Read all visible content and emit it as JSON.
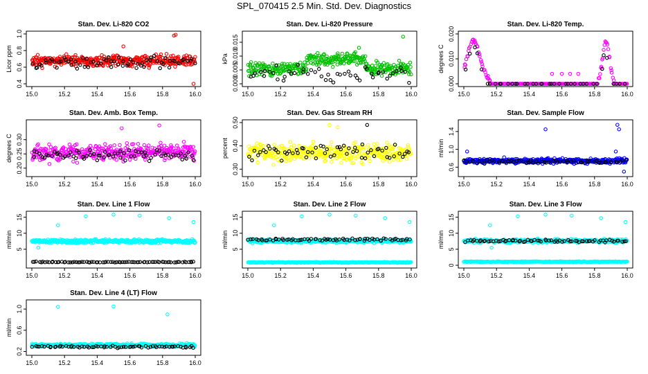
{
  "title": "SPL_070415  2.5 Min. Std. Dev. Diagnostics",
  "chart_data": [
    {
      "type": "scatter",
      "title": "Stan. Dev. Li-820 CO2",
      "ylabel": "Licor ppm",
      "xlim": [
        15.0,
        16.0
      ],
      "ylim": [
        0.4,
        1.0
      ],
      "xticks": [
        "15.0",
        "15.2",
        "15.4",
        "15.6",
        "15.8",
        "16.0"
      ],
      "yticks": [
        "0.4",
        "0.6",
        "0.8",
        "1.0"
      ],
      "series": [
        {
          "color": "#ff0000",
          "seed": 11,
          "base": 0.68,
          "spread": 0.07,
          "n": 380,
          "outliers": [
            [
              15.87,
              0.98
            ],
            [
              15.88,
              0.99
            ],
            [
              15.99,
              0.4
            ],
            [
              15.56,
              0.85
            ]
          ]
        },
        {
          "color": "#000000",
          "seed": 12,
          "base": 0.66,
          "spread": 0.08,
          "n": 70,
          "outliers": []
        }
      ]
    },
    {
      "type": "scatter",
      "title": "Stan. Dev. Li-820 Pressure",
      "ylabel": "kPa",
      "xlim": [
        15.0,
        16.0
      ],
      "ylim": [
        0.0,
        0.018
      ],
      "xticks": [
        "15.0",
        "15.2",
        "15.4",
        "15.6",
        "15.8",
        "16.0"
      ],
      "yticks": [
        "0.000",
        "0.005",
        "0.010",
        "0.015"
      ],
      "series": [
        {
          "color": "#00c000",
          "seed": 21,
          "base": 0.0055,
          "spread": 0.0025,
          "n": 360,
          "hump": [
            15.36,
            15.72,
            0.0035
          ],
          "outliers": [
            [
              15.95,
              0.017
            ],
            [
              15.68,
              0.013
            ],
            [
              15.55,
              0.011
            ]
          ]
        },
        {
          "color": "#000000",
          "seed": 22,
          "base": 0.004,
          "spread": 0.003,
          "n": 50,
          "outliers": []
        }
      ]
    },
    {
      "type": "scatter",
      "title": "Stan. Dev. Li-820 Temp.",
      "ylabel": "degrees C",
      "xlim": [
        15.0,
        16.0
      ],
      "ylim": [
        0.0,
        0.02
      ],
      "xticks": [
        "15.0",
        "15.2",
        "15.4",
        "15.6",
        "15.8",
        "16.0"
      ],
      "yticks": [
        "0.000",
        "0.010",
        "0.020"
      ],
      "series": [
        {
          "color": "#ff00ff",
          "seed": 31,
          "mode": "temp",
          "n": 220,
          "outliers": [
            [
              15.6,
              0.004
            ],
            [
              15.65,
              0.004
            ],
            [
              15.7,
              0.004
            ],
            [
              15.54,
              0.004
            ]
          ]
        },
        {
          "color": "#000000",
          "seed": 32,
          "mode": "tempblack",
          "n": 40,
          "outliers": []
        }
      ]
    },
    {
      "type": "scatter",
      "title": "Stan. Dev. Amb. Box Temp.",
      "ylabel": "degrees C",
      "xlim": [
        15.0,
        16.0
      ],
      "ylim": [
        0.18,
        0.36
      ],
      "xticks": [
        "15.0",
        "15.2",
        "15.4",
        "15.6",
        "15.8",
        "16.0"
      ],
      "yticks": [
        "0.20",
        "0.25",
        "0.30"
      ],
      "series": [
        {
          "color": "#ff00ff",
          "seed": 41,
          "base": 0.255,
          "spread": 0.03,
          "n": 380,
          "outliers": [
            [
              15.78,
              0.35
            ],
            [
              15.55,
              0.34
            ]
          ]
        },
        {
          "color": "#000000",
          "seed": 42,
          "base": 0.245,
          "spread": 0.02,
          "n": 70,
          "outliers": []
        }
      ]
    },
    {
      "type": "scatter",
      "title": "Stan. Dev. Gas Stream RH",
      "ylabel": "percent",
      "xlim": [
        15.0,
        16.0
      ],
      "ylim": [
        0.28,
        0.5
      ],
      "xticks": [
        "15.0",
        "15.2",
        "15.4",
        "15.6",
        "15.8",
        "16.0"
      ],
      "yticks": [
        "0.30",
        "0.40",
        "0.50"
      ],
      "series": [
        {
          "color": "#ffff00",
          "seed": 51,
          "base": 0.37,
          "spread": 0.04,
          "n": 380,
          "outliers": [
            [
              15.5,
              0.49
            ],
            [
              15.55,
              0.48
            ]
          ]
        },
        {
          "color": "#000000",
          "seed": 52,
          "base": 0.37,
          "spread": 0.04,
          "n": 60,
          "outliers": [
            [
              15.73,
              0.49
            ]
          ]
        }
      ]
    },
    {
      "type": "scatter",
      "title": "Stan. Dev. Sample Flow",
      "ylabel": "ml/min",
      "xlim": [
        15.0,
        16.0
      ],
      "ylim": [
        0.45,
        1.6
      ],
      "xticks": [
        "15.0",
        "15.2",
        "15.4",
        "15.6",
        "15.8",
        "16.0"
      ],
      "yticks": [
        "0.6",
        "1.0",
        "1.4"
      ],
      "series": [
        {
          "color": "#0000ff",
          "seed": 61,
          "base": 0.74,
          "spread": 0.06,
          "n": 380,
          "outliers": [
            [
              15.5,
              1.45
            ],
            [
              15.94,
              1.55
            ],
            [
              15.95,
              1.45
            ],
            [
              15.93,
              0.95
            ],
            [
              15.02,
              0.95
            ],
            [
              15.98,
              0.5
            ]
          ]
        },
        {
          "color": "#000000",
          "seed": 62,
          "base": 0.72,
          "spread": 0.04,
          "n": 60,
          "outliers": []
        }
      ]
    },
    {
      "type": "scatter",
      "title": "Stan. Dev. Line 1 Flow",
      "ylabel": "ml/min",
      "xlim": [
        15.0,
        16.0
      ],
      "ylim": [
        0.0,
        16.0
      ],
      "xticks": [
        "15.0",
        "15.2",
        "15.4",
        "15.6",
        "15.8",
        "16.0"
      ],
      "yticks": [
        "5",
        "10",
        "15"
      ],
      "series": [
        {
          "color": "#00ffff",
          "seed": 71,
          "base": 7.5,
          "spread": 0.6,
          "n": 420,
          "outliers": [
            [
              15.16,
              12.5
            ],
            [
              15.33,
              15.3
            ],
            [
              15.5,
              15.8
            ],
            [
              15.66,
              15.5
            ],
            [
              15.84,
              14.7
            ],
            [
              15.99,
              13.5
            ],
            [
              15.04,
              5.5
            ]
          ]
        },
        {
          "color": "#000000",
          "seed": 72,
          "base": 1.0,
          "spread": 0.15,
          "n": 80,
          "outliers": []
        }
      ]
    },
    {
      "type": "scatter",
      "title": "Stan. Dev. Line 2 Flow",
      "ylabel": "ml/min",
      "xlim": [
        15.0,
        16.0
      ],
      "ylim": [
        0.0,
        16.0
      ],
      "xticks": [
        "15.0",
        "15.2",
        "15.4",
        "15.6",
        "15.8",
        "16.0"
      ],
      "yticks": [
        "5",
        "10",
        "15"
      ],
      "series": [
        {
          "color": "#00ffff",
          "seed": 81,
          "base": 7.6,
          "spread": 0.6,
          "n": 400,
          "outliers": [
            [
              15.16,
              12.5
            ],
            [
              15.33,
              15.3
            ],
            [
              15.5,
              15.8
            ],
            [
              15.66,
              15.5
            ],
            [
              15.84,
              14.7
            ],
            [
              15.99,
              13.5
            ]
          ]
        },
        {
          "color": "#00ffff",
          "seed": 83,
          "base": 0.9,
          "spread": 0.15,
          "n": 300,
          "outliers": []
        },
        {
          "color": "#000000",
          "seed": 82,
          "base": 8.0,
          "spread": 0.5,
          "n": 70,
          "outliers": []
        }
      ]
    },
    {
      "type": "scatter",
      "title": "Stan. Dev. Line 3 Flow",
      "ylabel": "ml/min",
      "xlim": [
        15.0,
        16.0
      ],
      "ylim": [
        0.0,
        16.0
      ],
      "xticks": [
        "15.0",
        "15.2",
        "15.4",
        "15.6",
        "15.8",
        "16.0"
      ],
      "yticks": [
        "0",
        "5",
        "10",
        "15"
      ],
      "series": [
        {
          "color": "#00ffff",
          "seed": 91,
          "base": 7.6,
          "spread": 0.6,
          "n": 400,
          "outliers": [
            [
              15.16,
              12.5
            ],
            [
              15.33,
              15.3
            ],
            [
              15.5,
              15.8
            ],
            [
              15.66,
              15.5
            ],
            [
              15.84,
              14.7
            ],
            [
              15.99,
              13.5
            ],
            [
              15.17,
              5.5
            ]
          ]
        },
        {
          "color": "#00ffff",
          "seed": 93,
          "base": 1.1,
          "spread": 0.15,
          "n": 300,
          "outliers": []
        },
        {
          "color": "#000000",
          "seed": 92,
          "base": 7.6,
          "spread": 0.4,
          "n": 70,
          "outliers": []
        }
      ]
    },
    {
      "type": "scatter",
      "title": "Stan. Dev. Line 4 (LT) Flow",
      "ylabel": "ml/min",
      "xlim": [
        15.0,
        16.0
      ],
      "ylim": [
        0.18,
        1.12
      ],
      "xticks": [
        "15.0",
        "15.2",
        "15.4",
        "15.6",
        "15.8",
        "16.0"
      ],
      "yticks": [
        "0.2",
        "0.6",
        "1.0"
      ],
      "series": [
        {
          "color": "#00ffff",
          "seed": 101,
          "base": 0.32,
          "spread": 0.03,
          "n": 400,
          "outliers": [
            [
              15.16,
              1.04
            ],
            [
              15.5,
              1.05
            ],
            [
              15.83,
              0.9
            ]
          ]
        },
        {
          "color": "#000000",
          "seed": 102,
          "base": 0.29,
          "spread": 0.02,
          "n": 70,
          "outliers": []
        }
      ]
    }
  ]
}
